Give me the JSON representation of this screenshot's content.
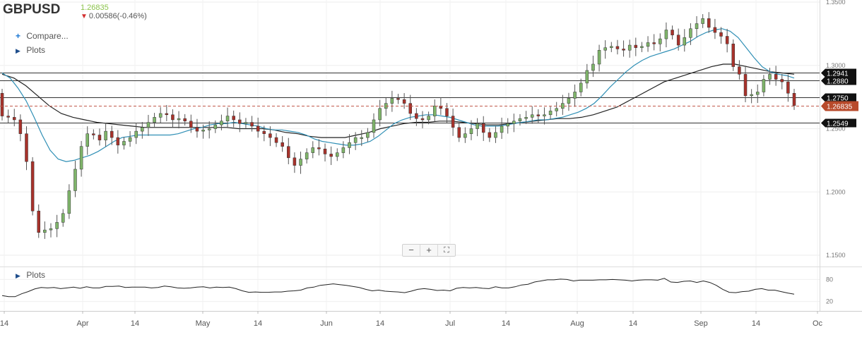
{
  "header": {
    "symbol": "GBPUSD",
    "last_price": "1.26835",
    "change": "0.00586(-0.46%)",
    "change_direction_icon": "down-arrow-icon",
    "compare_label": "Compare...",
    "plots_label": "Plots"
  },
  "indicator_panel": {
    "plots_label": "Plots",
    "ylim": [
      0,
      100
    ],
    "ticks": [
      "80",
      "20"
    ],
    "values": [
      36,
      33,
      33,
      41,
      47,
      54,
      58,
      57,
      58,
      55,
      57,
      59,
      56,
      60,
      57,
      57,
      61,
      61,
      62,
      58,
      59,
      59,
      59,
      57,
      58,
      62,
      60,
      57,
      56,
      57,
      59,
      60,
      57,
      59,
      58,
      59,
      55,
      49,
      45,
      46,
      45,
      45,
      46,
      46,
      48,
      49,
      51,
      57,
      59,
      64,
      66,
      68,
      66,
      64,
      61,
      58,
      53,
      49,
      51,
      48,
      47,
      46,
      44,
      48,
      53,
      55,
      53,
      50,
      51,
      49,
      56,
      58,
      57,
      58,
      56,
      55,
      60,
      57,
      57,
      60,
      65,
      67,
      73,
      76,
      79,
      79,
      81,
      80,
      76,
      78,
      78,
      78,
      79,
      79,
      80,
      79,
      78,
      76,
      78,
      79,
      79,
      78,
      83,
      73,
      72,
      75,
      76,
      72,
      76,
      72,
      64,
      53,
      45,
      44,
      47,
      48,
      53,
      55,
      51,
      51,
      47,
      43,
      40
    ]
  },
  "colors": {
    "up_candle": "#7fb56a",
    "down_candle": "#a8322b",
    "ma_fast": "#2f8fb5",
    "ma_slow": "#222222",
    "current_price_label": "#b84a2b"
  },
  "chart_data": {
    "type": "candlestick",
    "symbol": "GBPUSD",
    "ylim": [
      1.14,
      1.35
    ],
    "y_ticks": [
      "1.3500",
      "1.3000",
      "1.2500",
      "1.2000",
      "1.1500"
    ],
    "x_ticks": [
      "14",
      "Apr",
      "14",
      "May",
      "14",
      "Jun",
      "14",
      "Jul",
      "14",
      "Aug",
      "14",
      "Sep",
      "14",
      "Oc"
    ],
    "horizontal_lines": [
      {
        "value": 1.2941,
        "label": "1.2941"
      },
      {
        "value": 1.288,
        "label": "1.2880"
      },
      {
        "value": 1.275,
        "label": "1.2750"
      },
      {
        "value": 1.2549,
        "label": "1.2549"
      }
    ],
    "current_price": {
      "value": 1.26835,
      "label": "1.26835"
    },
    "grid": true,
    "ohlc_start": 1.278,
    "closes": [
      1.26,
      1.259,
      1.257,
      1.246,
      1.224,
      1.185,
      1.168,
      1.17,
      1.171,
      1.176,
      1.183,
      1.201,
      1.218,
      1.236,
      1.246,
      1.245,
      1.241,
      1.248,
      1.243,
      1.237,
      1.24,
      1.243,
      1.248,
      1.251,
      1.255,
      1.259,
      1.262,
      1.261,
      1.257,
      1.258,
      1.256,
      1.251,
      1.248,
      1.249,
      1.25,
      1.253,
      1.256,
      1.26,
      1.257,
      1.254,
      1.255,
      1.252,
      1.248,
      1.246,
      1.243,
      1.239,
      1.236,
      1.227,
      1.221,
      1.226,
      1.231,
      1.235,
      1.234,
      1.23,
      1.228,
      1.231,
      1.235,
      1.239,
      1.243,
      1.243,
      1.247,
      1.257,
      1.266,
      1.27,
      1.274,
      1.273,
      1.27,
      1.262,
      1.258,
      1.257,
      1.26,
      1.268,
      1.266,
      1.26,
      1.251,
      1.243,
      1.246,
      1.25,
      1.254,
      1.247,
      1.243,
      1.247,
      1.252,
      1.254,
      1.256,
      1.258,
      1.259,
      1.261,
      1.26,
      1.261,
      1.264,
      1.266,
      1.27,
      1.274,
      1.279,
      1.286,
      1.296,
      1.301,
      1.312,
      1.314,
      1.315,
      1.313,
      1.312,
      1.316,
      1.314,
      1.315,
      1.318,
      1.317,
      1.321,
      1.328,
      1.324,
      1.316,
      1.322,
      1.329,
      1.333,
      1.337,
      1.33,
      1.326,
      1.323,
      1.317,
      1.299,
      1.293,
      1.276,
      1.277,
      1.279,
      1.289,
      1.293,
      1.289,
      1.287,
      1.278,
      1.26835
    ],
    "ma_fast": [
      1.294,
      1.29,
      1.282,
      1.272,
      1.259,
      1.245,
      1.233,
      1.226,
      1.224,
      1.225,
      1.227,
      1.229,
      1.232,
      1.236,
      1.24,
      1.243,
      1.244,
      1.245,
      1.245,
      1.245,
      1.245,
      1.245,
      1.246,
      1.248,
      1.25,
      1.251,
      1.253,
      1.254,
      1.254,
      1.255,
      1.254,
      1.253,
      1.252,
      1.25,
      1.249,
      1.249,
      1.248,
      1.247,
      1.245,
      1.242,
      1.24,
      1.239,
      1.238,
      1.237,
      1.237,
      1.238,
      1.24,
      1.244,
      1.249,
      1.254,
      1.257,
      1.259,
      1.26,
      1.261,
      1.261,
      1.26,
      1.259,
      1.257,
      1.255,
      1.253,
      1.252,
      1.252,
      1.252,
      1.253,
      1.254,
      1.255,
      1.256,
      1.257,
      1.257,
      1.258,
      1.259,
      1.261,
      1.263,
      1.266,
      1.27,
      1.276,
      1.283,
      1.289,
      1.295,
      1.3,
      1.304,
      1.307,
      1.309,
      1.311,
      1.313,
      1.316,
      1.319,
      1.323,
      1.326,
      1.328,
      1.329,
      1.327,
      1.322,
      1.314,
      1.306,
      1.299,
      1.295,
      1.293,
      1.292,
      1.29
    ],
    "ma_slow": [
      1.293,
      1.29,
      1.284,
      1.276,
      1.268,
      1.262,
      1.259,
      1.257,
      1.255,
      1.254,
      1.253,
      1.252,
      1.251,
      1.251,
      1.251,
      1.251,
      1.251,
      1.251,
      1.251,
      1.251,
      1.25,
      1.25,
      1.25,
      1.249,
      1.247,
      1.246,
      1.244,
      1.243,
      1.243,
      1.243,
      1.245,
      1.247,
      1.25,
      1.252,
      1.254,
      1.255,
      1.255,
      1.256,
      1.256,
      1.255,
      1.254,
      1.253,
      1.253,
      1.254,
      1.255,
      1.256,
      1.257,
      1.258,
      1.258,
      1.259,
      1.261,
      1.264,
      1.267,
      1.272,
      1.277,
      1.282,
      1.287,
      1.29,
      1.293,
      1.296,
      1.299,
      1.301,
      1.301,
      1.299,
      1.297,
      1.295,
      1.294,
      1.293
    ]
  }
}
